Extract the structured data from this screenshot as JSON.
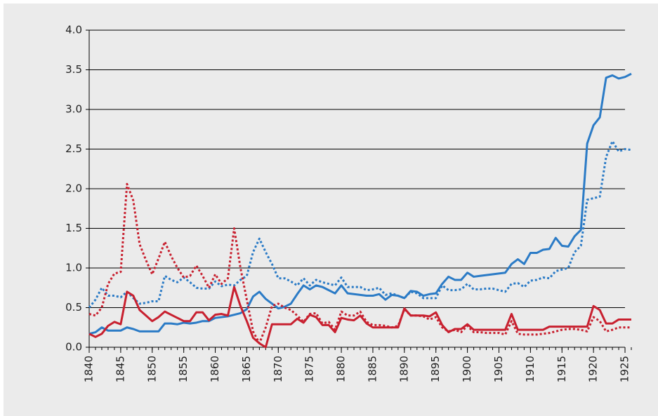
{
  "chart_data": {
    "type": "line",
    "x": [
      1840,
      1841,
      1842,
      1843,
      1844,
      1845,
      1846,
      1847,
      1848,
      1849,
      1850,
      1851,
      1852,
      1853,
      1854,
      1855,
      1856,
      1857,
      1858,
      1859,
      1860,
      1861,
      1862,
      1863,
      1864,
      1865,
      1866,
      1867,
      1868,
      1869,
      1870,
      1871,
      1872,
      1873,
      1874,
      1875,
      1876,
      1877,
      1878,
      1879,
      1880,
      1881,
      1882,
      1883,
      1884,
      1885,
      1886,
      1887,
      1888,
      1889,
      1890,
      1891,
      1892,
      1893,
      1894,
      1895,
      1896,
      1897,
      1898,
      1899,
      1900,
      1901,
      1902,
      1903,
      1904,
      1905,
      1906,
      1907,
      1908,
      1909,
      1910,
      1911,
      1912,
      1913,
      1914,
      1915,
      1916,
      1917,
      1918,
      1919,
      1920,
      1921,
      1922,
      1923,
      1924,
      1925,
      1926
    ],
    "series": [
      {
        "color": "#2b7bc6",
        "dash": false,
        "values": [
          0.17,
          0.19,
          0.25,
          0.21,
          0.21,
          0.21,
          0.25,
          0.23,
          0.2,
          0.2,
          0.2,
          0.2,
          0.3,
          0.3,
          0.29,
          0.31,
          0.3,
          0.31,
          0.33,
          0.33,
          0.37,
          0.38,
          0.39,
          0.41,
          0.43,
          0.48,
          0.64,
          0.7,
          0.61,
          0.55,
          0.49,
          0.51,
          0.55,
          0.67,
          0.78,
          0.73,
          0.78,
          0.76,
          0.72,
          0.68,
          0.78,
          0.68,
          0.67,
          0.66,
          0.65,
          0.65,
          0.67,
          0.6,
          0.66,
          0.65,
          0.62,
          0.71,
          0.7,
          0.65,
          0.67,
          0.68,
          0.8,
          0.89,
          0.85,
          0.85,
          0.94,
          0.89,
          0.9,
          0.91,
          0.92,
          0.93,
          0.94,
          1.05,
          1.11,
          1.05,
          1.19,
          1.19,
          1.23,
          1.24,
          1.38,
          1.28,
          1.27,
          1.4,
          1.48,
          2.57,
          2.8,
          2.9,
          3.4,
          3.43,
          3.39,
          3.41,
          3.45
        ]
      },
      {
        "color": "#2b7bc6",
        "dash": true,
        "values": [
          0.5,
          0.6,
          0.75,
          0.65,
          0.65,
          0.63,
          0.7,
          0.62,
          0.55,
          0.56,
          0.58,
          0.58,
          0.9,
          0.85,
          0.82,
          0.88,
          0.82,
          0.75,
          0.74,
          0.74,
          0.83,
          0.77,
          0.79,
          0.78,
          0.85,
          0.9,
          1.2,
          1.37,
          1.2,
          1.05,
          0.87,
          0.87,
          0.83,
          0.78,
          0.87,
          0.78,
          0.85,
          0.82,
          0.8,
          0.78,
          0.88,
          0.76,
          0.76,
          0.76,
          0.72,
          0.73,
          0.75,
          0.66,
          0.68,
          0.65,
          0.62,
          0.7,
          0.68,
          0.62,
          0.62,
          0.62,
          0.78,
          0.72,
          0.72,
          0.73,
          0.8,
          0.73,
          0.73,
          0.74,
          0.74,
          0.72,
          0.7,
          0.8,
          0.81,
          0.76,
          0.84,
          0.85,
          0.88,
          0.87,
          0.96,
          0.98,
          1.0,
          1.2,
          1.28,
          1.86,
          1.88,
          1.9,
          2.4,
          2.6,
          2.47,
          2.5,
          2.49
        ]
      },
      {
        "color": "#c8202f",
        "dash": false,
        "values": [
          0.17,
          0.13,
          0.17,
          0.27,
          0.32,
          0.29,
          0.7,
          0.65,
          0.47,
          0.4,
          0.33,
          0.38,
          0.45,
          0.41,
          0.37,
          0.33,
          0.33,
          0.44,
          0.44,
          0.34,
          0.41,
          0.42,
          0.4,
          0.76,
          0.52,
          0.33,
          0.12,
          0.05,
          0,
          0.29,
          0.29,
          0.29,
          0.29,
          0.36,
          0.31,
          0.41,
          0.38,
          0.28,
          0.28,
          0.19,
          0.37,
          0.35,
          0.34,
          0.4,
          0.3,
          0.25,
          0.25,
          0.25,
          0.25,
          0.25,
          0.49,
          0.4,
          0.4,
          0.4,
          0.39,
          0.44,
          0.28,
          0.19,
          0.23,
          0.23,
          0.29,
          0.22,
          0.22,
          0.22,
          0.22,
          0.22,
          0.22,
          0.42,
          0.22,
          0.22,
          0.22,
          0.22,
          0.22,
          0.26,
          0.26,
          0.26,
          0.26,
          0.26,
          0.26,
          0.26,
          0.52,
          0.47,
          0.3,
          0.3,
          0.35,
          0.35,
          0.35
        ]
      },
      {
        "color": "#c8202f",
        "dash": true,
        "values": [
          0.42,
          0.4,
          0.5,
          0.8,
          0.93,
          0.95,
          2.06,
          1.85,
          1.3,
          1.1,
          0.92,
          1.12,
          1.33,
          1.15,
          1.0,
          0.88,
          0.9,
          1.03,
          0.9,
          0.75,
          0.92,
          0.8,
          0.87,
          1.5,
          1.0,
          0.6,
          0.2,
          0.05,
          0.25,
          0.52,
          0.55,
          0.5,
          0.47,
          0.4,
          0.32,
          0.42,
          0.43,
          0.3,
          0.32,
          0.22,
          0.45,
          0.4,
          0.4,
          0.45,
          0.32,
          0.28,
          0.28,
          0.27,
          0.25,
          0.27,
          0.48,
          0.4,
          0.4,
          0.39,
          0.35,
          0.38,
          0.25,
          0.2,
          0.22,
          0.19,
          0.27,
          0.19,
          0.19,
          0.18,
          0.18,
          0.18,
          0.16,
          0.33,
          0.17,
          0.16,
          0.16,
          0.16,
          0.17,
          0.18,
          0.2,
          0.22,
          0.23,
          0.23,
          0.22,
          0.2,
          0.38,
          0.33,
          0.2,
          0.22,
          0.25,
          0.25,
          0.25
        ]
      }
    ],
    "xlim": [
      1840,
      1926
    ],
    "xticks": [
      1840,
      1845,
      1850,
      1855,
      1860,
      1865,
      1870,
      1875,
      1880,
      1885,
      1890,
      1895,
      1900,
      1905,
      1910,
      1915,
      1920,
      1925
    ],
    "ylim": [
      0,
      4
    ],
    "yticks": [
      {
        "value": 0,
        "label": "0.0"
      },
      0.5,
      {
        "value": 1,
        "label": "1.0"
      },
      1.5,
      {
        "value": 2,
        "label": "2.0"
      },
      2.5,
      {
        "value": 3,
        "label": "3.0"
      },
      3.5,
      {
        "value": 4,
        "label": "4.0"
      }
    ],
    "grid": true
  }
}
